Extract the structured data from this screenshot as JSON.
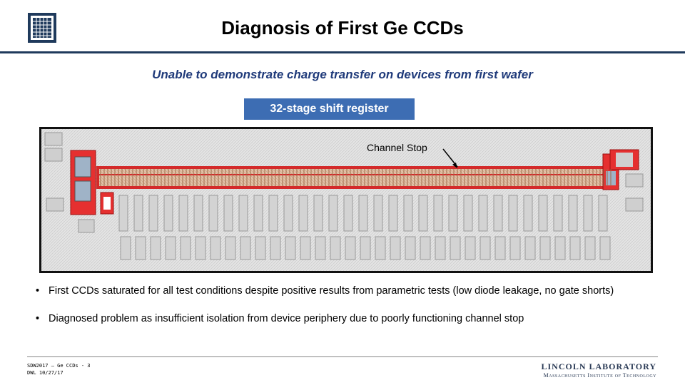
{
  "slide": {
    "title": "Diagnosis of First Ge CCDs",
    "subtitle": "Unable to demonstrate charge transfer on devices from first wafer",
    "image_label": "32-stage shift register",
    "callout": "Channel Stop",
    "bullets": [
      "First CCDs saturated for all test conditions despite positive results from parametric tests (low diode leakage, no gate shorts)",
      "Diagnosed problem as insufficient isolation from device periphery due to poorly functioning channel stop"
    ]
  },
  "footer": {
    "line1": "SDW2017 – Ge CCDs - 3",
    "line2": "DWL 10/27/17",
    "org_name": "LINCOLN LABORATORY",
    "org_sub": "Massachusetts Institute of Technology"
  },
  "colors": {
    "accent": "#1f3a5c",
    "label_bg": "#3d6db3",
    "subtitle": "#1f3a7a",
    "channel_red": "#d42a2a",
    "layout_bg": "#d9d9d9",
    "gate_tan": "#d8b79a"
  },
  "icons": {
    "logo": "mit-ll-logo",
    "arrow": "callout-arrow"
  }
}
